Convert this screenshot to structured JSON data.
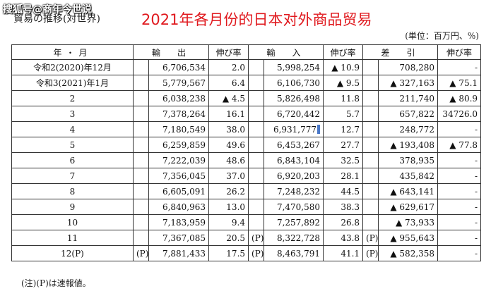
{
  "watermark": "搜狐号@商年今世说",
  "subtitle": "貿易の推移(対世界)",
  "title": "2021年各月份的日本对外商品贸易",
  "unit": "(単位：百万円、%)",
  "note": "(注)(P)は速報値。",
  "headers": {
    "period": "年・月",
    "exports": "輸　出",
    "exp_growth": "伸び率",
    "imports": "輸　入",
    "imp_growth": "伸び率",
    "balance": "差　引",
    "bal_growth": "伸び率"
  },
  "rows": [
    {
      "period": "令和2(2020)年12月",
      "exp_p": "",
      "exports": "6,706,534",
      "exp_growth": "2.0",
      "imp_p": "",
      "imports": "5,998,254",
      "imp_growth": "▲ 10.9",
      "bal_p": "",
      "balance": "708,280",
      "bal_growth": "-"
    },
    {
      "period": "令和3(2021)年1月",
      "exp_p": "",
      "exports": "5,779,567",
      "exp_growth": "6.4",
      "imp_p": "",
      "imports": "6,106,730",
      "imp_growth": "▲ 9.5",
      "bal_p": "",
      "balance": "▲ 327,163",
      "bal_growth": "▲ 75.1"
    },
    {
      "period": "2",
      "exp_p": "",
      "exports": "6,038,238",
      "exp_growth": "▲ 4.5",
      "imp_p": "",
      "imports": "5,826,498",
      "imp_growth": "11.8",
      "bal_p": "",
      "balance": "211,740",
      "bal_growth": "▲ 80.9"
    },
    {
      "period": "3",
      "exp_p": "",
      "exports": "7,378,264",
      "exp_growth": "16.1",
      "imp_p": "",
      "imports": "6,720,442",
      "imp_growth": "5.7",
      "bal_p": "",
      "balance": "657,822",
      "bal_growth": "34726.0"
    },
    {
      "period": "4",
      "exp_p": "",
      "exports": "7,180,549",
      "exp_growth": "38.0",
      "imp_p": "",
      "imports": "6,931,777",
      "imp_growth": "12.7",
      "bal_p": "",
      "balance": "248,772",
      "bal_growth": "-"
    },
    {
      "period": "5",
      "exp_p": "",
      "exports": "6,259,859",
      "exp_growth": "49.6",
      "imp_p": "",
      "imports": "6,453,267",
      "imp_growth": "27.7",
      "bal_p": "",
      "balance": "▲ 193,408",
      "bal_growth": "▲ 77.8"
    },
    {
      "period": "6",
      "exp_p": "",
      "exports": "7,222,039",
      "exp_growth": "48.6",
      "imp_p": "",
      "imports": "6,843,104",
      "imp_growth": "32.5",
      "bal_p": "",
      "balance": "378,935",
      "bal_growth": "-"
    },
    {
      "period": "7",
      "exp_p": "",
      "exports": "7,356,045",
      "exp_growth": "37.0",
      "imp_p": "",
      "imports": "6,920,203",
      "imp_growth": "28.1",
      "bal_p": "",
      "balance": "435,842",
      "bal_growth": "-"
    },
    {
      "period": "8",
      "exp_p": "",
      "exports": "6,605,091",
      "exp_growth": "26.2",
      "imp_p": "",
      "imports": "7,248,232",
      "imp_growth": "44.5",
      "bal_p": "",
      "balance": "▲ 643,141",
      "bal_growth": "-"
    },
    {
      "period": "9",
      "exp_p": "",
      "exports": "6,840,963",
      "exp_growth": "13.0",
      "imp_p": "",
      "imports": "7,470,580",
      "imp_growth": "38.3",
      "bal_p": "",
      "balance": "▲ 629,617",
      "bal_growth": "-"
    },
    {
      "period": "10",
      "exp_p": "",
      "exports": "7,183,959",
      "exp_growth": "9.4",
      "imp_p": "",
      "imports": "7,257,892",
      "imp_growth": "26.8",
      "bal_p": "",
      "balance": "▲ 73,933",
      "bal_growth": "-"
    },
    {
      "period": "11",
      "exp_p": "",
      "exports": "7,367,085",
      "exp_growth": "20.5",
      "imp_p": "(P)",
      "imports": "8,322,728",
      "imp_growth": "43.8",
      "bal_p": "(P)",
      "balance": "▲ 955,643",
      "bal_growth": "-"
    },
    {
      "period": "12(P)",
      "exp_p": "(P)",
      "exports": "7,881,433",
      "exp_growth": "17.5",
      "imp_p": "(P)",
      "imports": "8,463,791",
      "imp_growth": "41.1",
      "bal_p": "(P)",
      "balance": "▲ 582,358",
      "bal_growth": "-"
    }
  ]
}
